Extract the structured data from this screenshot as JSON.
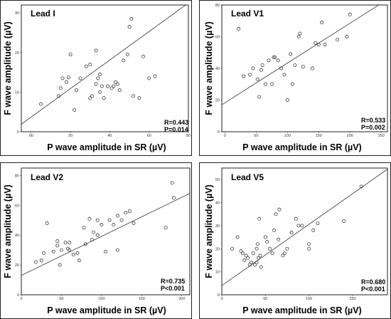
{
  "chart_data": [
    {
      "type": "scatter",
      "title": "Lead I",
      "xlabel": "P wave amplitude in SR (µV)",
      "ylabel": "F wave amplitude (µV)",
      "xlim": [
        -5,
        80
      ],
      "ylim": [
        0,
        32
      ],
      "xticks": [
        "00",
        "20",
        "40",
        "60",
        "80"
      ],
      "yticks": [
        "0",
        "10",
        "20",
        "30"
      ],
      "grid": false,
      "fit_line": {
        "x": [
          -5,
          80
        ],
        "y": [
          1.9,
          32.5
        ]
      },
      "stats": [
        "R=0.443",
        "P=0.014"
      ],
      "points": [
        [
          5,
          7
        ],
        [
          14,
          9
        ],
        [
          15,
          11
        ],
        [
          16,
          13.5
        ],
        [
          18,
          12.5
        ],
        [
          19,
          13.7
        ],
        [
          20,
          19.5
        ],
        [
          22,
          5.5
        ],
        [
          23,
          10.5
        ],
        [
          25,
          13.5
        ],
        [
          28,
          16.5
        ],
        [
          30,
          8.5
        ],
        [
          30,
          17
        ],
        [
          31,
          9
        ],
        [
          33,
          12
        ],
        [
          33,
          20.5
        ],
        [
          34,
          13.5
        ],
        [
          35,
          10
        ],
        [
          35,
          14.5
        ],
        [
          36,
          11.5
        ],
        [
          37,
          8.5
        ],
        [
          39,
          11.5
        ],
        [
          41,
          11
        ],
        [
          42,
          11.5
        ],
        [
          43,
          12.5
        ],
        [
          44,
          12
        ],
        [
          45,
          10.5
        ],
        [
          47,
          18
        ],
        [
          49,
          19.5
        ],
        [
          50,
          26.5
        ],
        [
          51,
          28.5
        ],
        [
          52,
          9
        ],
        [
          55,
          8.5
        ],
        [
          57,
          19
        ],
        [
          60,
          13.5
        ],
        [
          63,
          14
        ]
      ]
    },
    {
      "type": "scatter",
      "title": "Lead V1",
      "xlabel": "P wave amplitude in SR (µV)",
      "ylabel": "F wave amplitude (µV)",
      "xlim": [
        -5,
        260
      ],
      "ylim": [
        0,
        80
      ],
      "xticks": [
        "0",
        "50",
        "100",
        "150",
        "200",
        "250"
      ],
      "yticks": [
        "0",
        "20",
        "40",
        "60",
        "80"
      ],
      "grid": false,
      "fit_line": {
        "x": [
          -5,
          260
        ],
        "y": [
          17,
          83.5
        ]
      },
      "stats": [
        "R=0.533",
        "P=0.002"
      ],
      "points": [
        [
          22,
          65
        ],
        [
          30,
          35
        ],
        [
          40,
          36
        ],
        [
          45,
          40
        ],
        [
          52,
          33
        ],
        [
          55,
          22
        ],
        [
          58,
          39
        ],
        [
          60,
          42
        ],
        [
          65,
          30
        ],
        [
          70,
          45
        ],
        [
          75,
          30
        ],
        [
          78,
          47
        ],
        [
          80,
          47
        ],
        [
          85,
          45
        ],
        [
          90,
          40
        ],
        [
          95,
          36
        ],
        [
          100,
          20
        ],
        [
          105,
          49
        ],
        [
          108,
          30
        ],
        [
          112,
          42
        ],
        [
          118,
          60
        ],
        [
          120,
          62
        ],
        [
          125,
          41
        ],
        [
          140,
          40
        ],
        [
          145,
          56
        ],
        [
          150,
          55
        ],
        [
          155,
          69
        ],
        [
          160,
          55
        ],
        [
          180,
          58
        ],
        [
          195,
          60
        ],
        [
          200,
          74
        ]
      ]
    },
    {
      "type": "scatter",
      "title": "Lead V2",
      "xlabel": "P wave amplitude in SR (µV)",
      "ylabel": "F wave amplitude (µV)",
      "xlim": [
        0,
        210
      ],
      "ylim": [
        0,
        85
      ],
      "xticks": [
        "0",
        "50",
        "100",
        "150",
        "200"
      ],
      "yticks": [
        "0",
        "20",
        "40",
        "60",
        "80"
      ],
      "grid": false,
      "fit_line": {
        "x": [
          0,
          210
        ],
        "y": [
          13,
          68
        ]
      },
      "stats": [
        "R=0.735",
        "P<0.001"
      ],
      "points": [
        [
          18,
          22
        ],
        [
          25,
          23
        ],
        [
          28,
          28
        ],
        [
          32,
          48
        ],
        [
          40,
          29
        ],
        [
          45,
          33
        ],
        [
          45,
          36
        ],
        [
          48,
          20
        ],
        [
          50,
          30
        ],
        [
          55,
          35
        ],
        [
          58,
          31
        ],
        [
          60,
          35
        ],
        [
          60,
          30
        ],
        [
          65,
          27
        ],
        [
          70,
          28
        ],
        [
          72,
          23
        ],
        [
          78,
          45
        ],
        [
          80,
          34
        ],
        [
          85,
          51
        ],
        [
          88,
          37
        ],
        [
          90,
          42
        ],
        [
          95,
          40
        ],
        [
          95,
          50
        ],
        [
          100,
          47
        ],
        [
          105,
          29
        ],
        [
          110,
          50
        ],
        [
          115,
          47
        ],
        [
          120,
          30
        ],
        [
          120,
          53
        ],
        [
          125,
          50
        ],
        [
          130,
          55
        ],
        [
          135,
          56
        ],
        [
          140,
          48
        ],
        [
          180,
          45
        ],
        [
          188,
          75
        ],
        [
          190,
          65
        ]
      ]
    },
    {
      "type": "scatter",
      "title": "Lead V5",
      "xlabel": "P wave amplitude in SR (µV)",
      "ylabel": "F wave amplitude (µV)",
      "xlim": [
        0,
        190
      ],
      "ylim": [
        0,
        55
      ],
      "xticks": [
        "0",
        "50",
        "100",
        "150"
      ],
      "yticks": [
        "0",
        "10",
        "20",
        "30",
        "40",
        "50"
      ],
      "grid": false,
      "fit_line": {
        "x": [
          0,
          190
        ],
        "y": [
          4,
          54.5
        ]
      },
      "stats": [
        "R=0.680",
        "P<0.001"
      ],
      "points": [
        [
          12,
          20
        ],
        [
          18,
          25
        ],
        [
          22,
          19
        ],
        [
          24,
          18
        ],
        [
          26,
          15
        ],
        [
          28,
          17
        ],
        [
          30,
          16
        ],
        [
          32,
          13
        ],
        [
          34,
          14
        ],
        [
          36,
          18
        ],
        [
          38,
          13
        ],
        [
          40,
          14
        ],
        [
          40,
          20
        ],
        [
          41,
          22
        ],
        [
          42,
          16
        ],
        [
          43,
          33
        ],
        [
          44,
          17
        ],
        [
          45,
          12
        ],
        [
          50,
          25
        ],
        [
          52,
          23
        ],
        [
          55,
          20
        ],
        [
          58,
          18
        ],
        [
          60,
          28
        ],
        [
          62,
          35
        ],
        [
          65,
          24
        ],
        [
          66,
          37
        ],
        [
          70,
          17
        ],
        [
          72,
          18
        ],
        [
          75,
          20
        ],
        [
          80,
          27
        ],
        [
          85,
          33
        ],
        [
          88,
          30
        ],
        [
          92,
          30
        ],
        [
          100,
          20
        ],
        [
          100,
          22
        ],
        [
          105,
          28
        ],
        [
          110,
          31
        ],
        [
          140,
          32
        ],
        [
          160,
          47
        ]
      ]
    }
  ]
}
